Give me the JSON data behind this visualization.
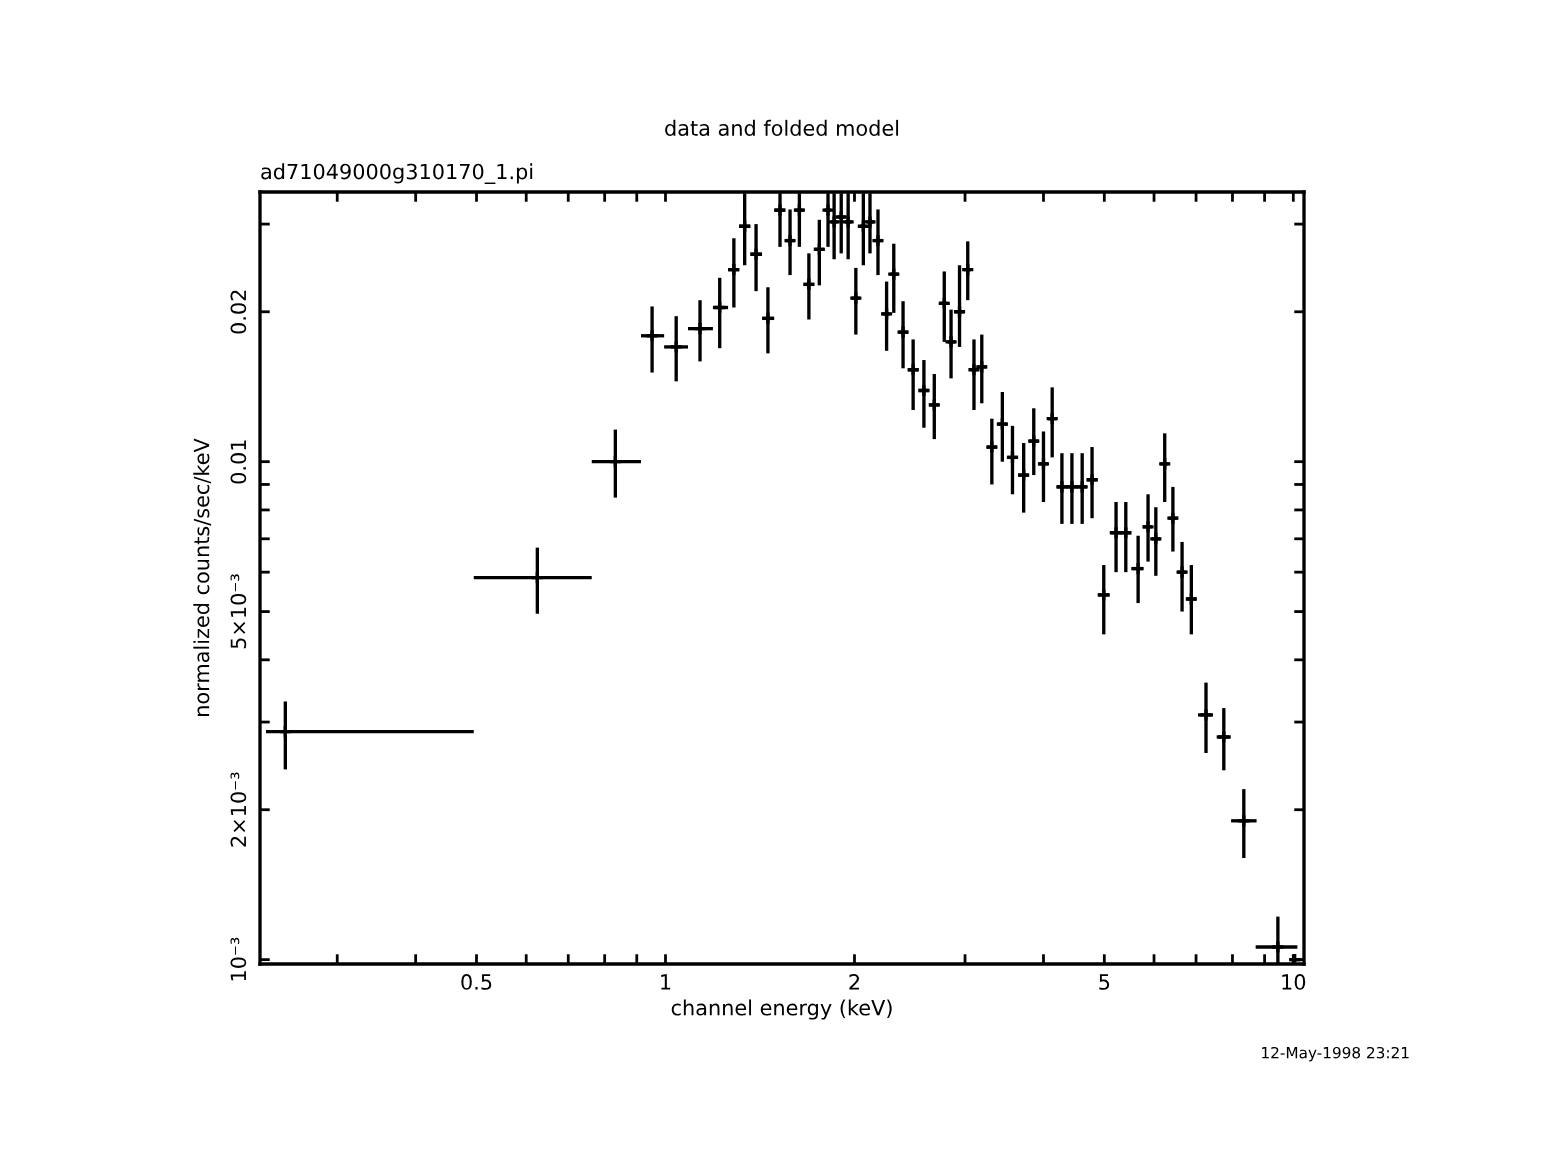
{
  "chart_data": {
    "type": "scatter",
    "title": "data and folded model",
    "subtitle": "ad71049000g310170_1.pi",
    "xlabel": "channel energy (keV)",
    "ylabel": "normalized counts/sec/keV",
    "annotations": [
      "12-May-1998 23:21"
    ],
    "log": "xy",
    "grid": false,
    "xlim": [
      0.226,
      10.4
    ],
    "ylim": [
      0.00098,
      0.0348
    ],
    "xticks": [
      {
        "value": 0.3,
        "label": null
      },
      {
        "value": 0.4,
        "label": null
      },
      0.5,
      {
        "value": 0.6,
        "label": null
      },
      {
        "value": 0.7,
        "label": null
      },
      {
        "value": 0.8,
        "label": null
      },
      {
        "value": 0.9,
        "label": null
      },
      1,
      2,
      {
        "value": 3,
        "label": null
      },
      {
        "value": 4,
        "label": null
      },
      5,
      {
        "value": 6,
        "label": null
      },
      {
        "value": 7,
        "label": null
      },
      {
        "value": 8,
        "label": null
      },
      {
        "value": 9,
        "label": null
      },
      10
    ],
    "yticks": [
      {
        "value": 0.001,
        "label": "10⁻³"
      },
      {
        "value": 0.002,
        "label": "2×10⁻³"
      },
      {
        "value": 0.003,
        "label": null
      },
      {
        "value": 0.004,
        "label": null
      },
      {
        "value": 0.005,
        "label": "5×10⁻³"
      },
      {
        "value": 0.006,
        "label": null
      },
      {
        "value": 0.007,
        "label": null
      },
      {
        "value": 0.008,
        "label": null
      },
      {
        "value": 0.009,
        "label": null
      },
      0.01,
      0.02,
      {
        "value": 0.03,
        "label": null
      }
    ],
    "series": [
      {
        "color": "#000000",
        "x": [
          0.248,
          0.625,
          0.832,
          0.952,
          1.04,
          1.135,
          1.22,
          1.285,
          1.337,
          1.394,
          1.456,
          1.522,
          1.579,
          1.634,
          1.692,
          1.758,
          1.815,
          1.856,
          1.905,
          1.954,
          2.01,
          2.066,
          2.117,
          2.18,
          2.25,
          2.31,
          2.39,
          2.48,
          2.58,
          2.68,
          2.78,
          2.85,
          2.94,
          3.03,
          3.1,
          3.19,
          3.31,
          3.44,
          3.57,
          3.72,
          3.86,
          4.0,
          4.13,
          4.28,
          4.44,
          4.61,
          4.78,
          4.99,
          5.22,
          5.41,
          5.66,
          5.87,
          6.04,
          6.24,
          6.43,
          6.65,
          6.88,
          7.26,
          7.75,
          8.34,
          9.45,
          10.05
        ],
        "values": [
          0.00287,
          0.00585,
          0.01,
          0.0179,
          0.017,
          0.0185,
          0.0204,
          0.0243,
          0.0297,
          0.0261,
          0.0194,
          0.032,
          0.0278,
          0.032,
          0.0227,
          0.0267,
          0.032,
          0.0303,
          0.031,
          0.0303,
          0.0213,
          0.0297,
          0.0303,
          0.0278,
          0.0198,
          0.0238,
          0.0182,
          0.0153,
          0.0139,
          0.013,
          0.0208,
          0.0174,
          0.02,
          0.0243,
          0.0153,
          0.0155,
          0.0107,
          0.0119,
          0.0102,
          0.0094,
          0.011,
          0.0099,
          0.0122,
          0.0089,
          0.0089,
          0.0089,
          0.0092,
          0.0054,
          0.0072,
          0.0072,
          0.0061,
          0.0074,
          0.007,
          0.0099,
          0.0077,
          0.006,
          0.0053,
          0.0031,
          0.0028,
          0.0019,
          0.00106,
          0.001
        ],
        "errors": [
          [
            0.00241,
            0.0033
          ],
          [
            0.00495,
            0.00672
          ],
          [
            0.00847,
            0.0116
          ],
          [
            0.0151,
            0.0205
          ],
          [
            0.0145,
            0.0196
          ],
          [
            0.0159,
            0.0211
          ],
          [
            0.0169,
            0.0234
          ],
          [
            0.0204,
            0.0281
          ],
          [
            0.0248,
            0.0346
          ],
          [
            0.022,
            0.03
          ],
          [
            0.0165,
            0.0224
          ],
          [
            0.027,
            0.0346
          ],
          [
            0.0237,
            0.0321
          ],
          [
            0.027,
            0.0346
          ],
          [
            0.0193,
            0.0262
          ],
          [
            0.0226,
            0.0306
          ],
          [
            0.027,
            0.0346
          ],
          [
            0.0255,
            0.0346
          ],
          [
            0.0262,
            0.0346
          ],
          [
            0.0255,
            0.0346
          ],
          [
            0.018,
            0.0245
          ],
          [
            0.0248,
            0.0346
          ],
          [
            0.0262,
            0.0346
          ],
          [
            0.0237,
            0.0321
          ],
          [
            0.0167,
            0.023
          ],
          [
            0.0199,
            0.0274
          ],
          [
            0.0154,
            0.021
          ],
          [
            0.0127,
            0.0176
          ],
          [
            0.0117,
            0.016
          ],
          [
            0.0111,
            0.015
          ],
          [
            0.0174,
            0.0241
          ],
          [
            0.0147,
            0.0202
          ],
          [
            0.017,
            0.0248
          ],
          [
            0.0211,
            0.0277
          ],
          [
            0.0127,
            0.0176
          ],
          [
            0.0131,
            0.018
          ],
          [
            0.009,
            0.0122
          ],
          [
            0.01,
            0.0138
          ],
          [
            0.0086,
            0.0118
          ],
          [
            0.0079,
            0.0109
          ],
          [
            0.0094,
            0.0128
          ],
          [
            0.0083,
            0.0115
          ],
          [
            0.0102,
            0.0141
          ],
          [
            0.0075,
            0.0104
          ],
          [
            0.0075,
            0.0104
          ],
          [
            0.0075,
            0.0104
          ],
          [
            0.0077,
            0.0107
          ],
          [
            0.0045,
            0.0062
          ],
          [
            0.006,
            0.0083
          ],
          [
            0.006,
            0.0083
          ],
          [
            0.0052,
            0.0071
          ],
          [
            0.0063,
            0.0086
          ],
          [
            0.0059,
            0.0081
          ],
          [
            0.0083,
            0.0114
          ],
          [
            0.0066,
            0.0089
          ],
          [
            0.005,
            0.0069
          ],
          [
            0.0045,
            0.0062
          ],
          [
            0.0026,
            0.0036
          ],
          [
            0.0024,
            0.0032
          ],
          [
            0.0016,
            0.0022
          ],
          [
            0.00098,
            0.00122
          ],
          null
        ],
        "xerrors": [
          [
            0.231,
            0.495
          ],
          [
            0.495,
            0.763
          ],
          [
            0.763,
            0.914
          ],
          [
            0.914,
            0.995
          ],
          [
            0.995,
            1.086
          ],
          [
            1.086,
            1.19
          ],
          [
            1.19,
            1.258
          ],
          [
            1.258,
            1.31
          ],
          [
            1.31,
            1.365
          ],
          [
            1.365,
            1.425
          ],
          [
            1.425,
            1.49
          ],
          [
            1.49,
            1.55
          ],
          [
            1.55,
            1.605
          ],
          [
            1.605,
            1.66
          ],
          [
            1.66,
            1.725
          ],
          [
            1.725,
            1.79
          ],
          [
            1.79,
            1.835
          ],
          [
            1.835,
            1.88
          ],
          [
            1.88,
            1.93
          ],
          [
            1.93,
            1.98
          ],
          [
            1.98,
            2.04
          ],
          [
            2.04,
            2.09
          ],
          [
            2.09,
            2.15
          ],
          [
            2.15,
            2.215
          ],
          [
            2.215,
            2.28
          ],
          [
            2.28,
            2.35
          ],
          [
            2.35,
            2.435
          ],
          [
            2.435,
            2.53
          ],
          [
            2.53,
            2.63
          ],
          [
            2.63,
            2.73
          ],
          [
            2.73,
            2.815
          ],
          [
            2.815,
            2.895
          ],
          [
            2.895,
            2.985
          ],
          [
            2.985,
            3.065
          ],
          [
            3.065,
            3.145
          ],
          [
            3.145,
            3.25
          ],
          [
            3.25,
            3.375
          ],
          [
            3.375,
            3.505
          ],
          [
            3.505,
            3.645
          ],
          [
            3.645,
            3.79
          ],
          [
            3.79,
            3.93
          ],
          [
            3.93,
            4.065
          ],
          [
            4.065,
            4.2
          ],
          [
            4.2,
            4.36
          ],
          [
            4.36,
            4.52
          ],
          [
            4.52,
            4.69
          ],
          [
            4.69,
            4.88
          ],
          [
            4.88,
            5.1
          ],
          [
            5.1,
            5.31
          ],
          [
            5.31,
            5.52
          ],
          [
            5.52,
            5.76
          ],
          [
            5.76,
            5.95
          ],
          [
            5.95,
            6.14
          ],
          [
            6.14,
            6.33
          ],
          [
            6.33,
            6.54
          ],
          [
            6.54,
            6.76
          ],
          [
            6.76,
            7.0
          ],
          [
            7.05,
            7.45
          ],
          [
            7.55,
            7.95
          ],
          [
            7.96,
            8.74
          ],
          [
            8.71,
            10.15
          ],
          [
            9.9,
            10.3
          ]
        ]
      }
    ]
  }
}
